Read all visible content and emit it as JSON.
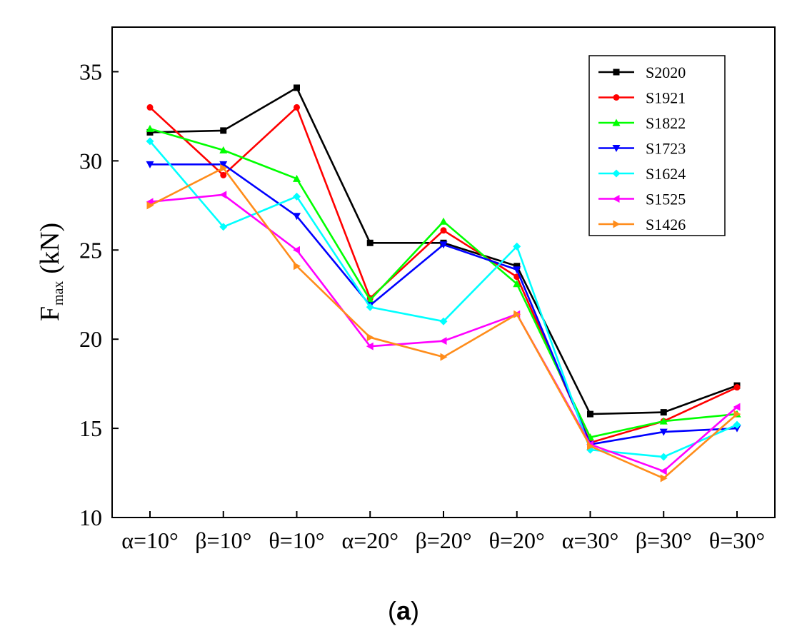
{
  "chart_data": {
    "type": "line",
    "title": "",
    "xlabel": "",
    "ylabel": "F",
    "ylabel_subscript": "max",
    "ylabel_unit": "(kN)",
    "ylim": [
      10,
      37.5
    ],
    "yticks": [
      10,
      15,
      20,
      25,
      30,
      35
    ],
    "grid": false,
    "legend_position": "top-right",
    "panel_label": "(a)",
    "panel_label_bold": "a",
    "categories": [
      "α=10°",
      "β=10°",
      "θ=10°",
      "α=20°",
      "β=20°",
      "θ=20°",
      "α=30°",
      "β=30°",
      "θ=30°"
    ],
    "series": [
      {
        "name": "S2020",
        "color": "#000000",
        "marker": "square",
        "values": [
          31.6,
          31.7,
          34.1,
          25.4,
          25.4,
          24.1,
          15.8,
          15.9,
          17.4
        ]
      },
      {
        "name": "S1921",
        "color": "#ff0000",
        "marker": "circle",
        "values": [
          33.0,
          29.2,
          33.0,
          22.3,
          26.1,
          23.5,
          14.2,
          15.4,
          17.3
        ]
      },
      {
        "name": "S1822",
        "color": "#00ff00",
        "marker": "triangle-up",
        "values": [
          31.8,
          30.6,
          29.0,
          22.2,
          26.6,
          23.1,
          14.5,
          15.4,
          15.8
        ]
      },
      {
        "name": "S1723",
        "color": "#0000ff",
        "marker": "triangle-down",
        "values": [
          29.8,
          29.8,
          26.9,
          21.9,
          25.3,
          23.9,
          14.1,
          14.8,
          15.0
        ]
      },
      {
        "name": "S1624",
        "color": "#00ffff",
        "marker": "diamond",
        "values": [
          31.1,
          26.3,
          28.0,
          21.8,
          21.0,
          25.2,
          13.8,
          13.4,
          15.2
        ]
      },
      {
        "name": "S1525",
        "color": "#ff00ff",
        "marker": "triangle-left",
        "values": [
          27.7,
          28.1,
          25.0,
          19.6,
          19.9,
          21.4,
          14.1,
          12.6,
          16.2
        ]
      },
      {
        "name": "S1426",
        "color": "#ff8c1a",
        "marker": "triangle-right",
        "values": [
          27.5,
          29.6,
          24.1,
          20.1,
          19.0,
          21.4,
          14.0,
          12.2,
          15.8
        ]
      }
    ]
  }
}
